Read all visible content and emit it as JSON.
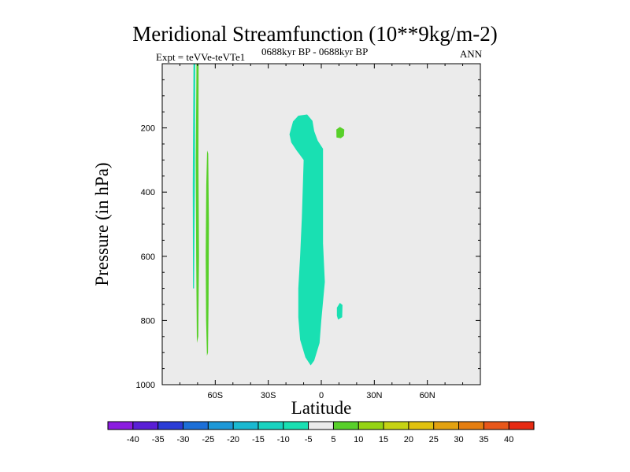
{
  "title": "Meridional Streamfunction (10**9kg/m-2)",
  "subtitle_left": "Expt = teVVe-teVTe1",
  "subtitle_center": "0688kyr BP - 0688kyr BP",
  "subtitle_right": "ANN",
  "chart_data": {
    "type": "contour",
    "title": "Meridional Streamfunction (10**9kg/m-2)",
    "xlabel": "Latitude",
    "ylabel": "Pressure (in hPa)",
    "xlim": [
      -90,
      90
    ],
    "ylim": [
      0,
      1000
    ],
    "y_inverted": true,
    "x_ticks": [
      -60,
      -30,
      0,
      30,
      60
    ],
    "x_tick_labels": [
      "60S",
      "30S",
      "0",
      "30N",
      "60N"
    ],
    "y_ticks": [
      200,
      400,
      600,
      800,
      1000
    ],
    "y_tick_labels": [
      "200",
      "400",
      "600",
      "800",
      "1000"
    ],
    "background_level": "-5 to 5",
    "colorbar": {
      "levels": [
        -40,
        -35,
        -30,
        -25,
        -20,
        -15,
        -10,
        -5,
        5,
        10,
        15,
        20,
        25,
        30,
        35,
        40
      ],
      "labels": [
        "-40",
        "-35",
        "-30",
        "-25",
        "-20",
        "-15",
        "-10",
        "-5",
        "5",
        "10",
        "15",
        "20",
        "25",
        "30",
        "35",
        "40"
      ],
      "colors": [
        "#8b1ce0",
        "#5a1fd6",
        "#2b3cd6",
        "#1c6fd8",
        "#1d98d8",
        "#1ab9d1",
        "#18d3c0",
        "#19e0b2",
        "#ebebeb",
        "#58d02a",
        "#95d413",
        "#c6d313",
        "#e1c20f",
        "#e3a210",
        "#e57e10",
        "#e8571a",
        "#e62a12"
      ]
    },
    "regions": [
      {
        "name": "equatorial-negative-cell",
        "color": "#19e0b2",
        "level": "-10 to -5",
        "polygon": [
          [
            -18,
            220
          ],
          [
            -16,
            180
          ],
          [
            -13,
            162
          ],
          [
            -8,
            158
          ],
          [
            -5,
            178
          ],
          [
            -4,
            210
          ],
          [
            -2,
            240
          ],
          [
            1,
            265
          ],
          [
            1,
            560
          ],
          [
            2,
            680
          ],
          [
            0,
            800
          ],
          [
            -1,
            870
          ],
          [
            -4,
            925
          ],
          [
            -6,
            940
          ],
          [
            -9,
            915
          ],
          [
            -12,
            860
          ],
          [
            -13,
            790
          ],
          [
            -13,
            700
          ],
          [
            -12,
            600
          ],
          [
            -11,
            480
          ],
          [
            -10,
            300
          ],
          [
            -12,
            285
          ],
          [
            -14,
            270
          ],
          [
            -17,
            245
          ]
        ]
      },
      {
        "name": "southern-negative-strip",
        "color": "#19e0b2",
        "level": "-10 to -5",
        "polygon": [
          [
            -72.3,
            0
          ],
          [
            -71.3,
            0
          ],
          [
            -71.5,
            380
          ],
          [
            -72,
            700
          ],
          [
            -72.6,
            700
          ],
          [
            -72.7,
            380
          ]
        ]
      },
      {
        "name": "southern-positive-strip-a",
        "color": "#58d02a",
        "level": "5 to 10",
        "polygon": [
          [
            -70.6,
            0
          ],
          [
            -69.4,
            0
          ],
          [
            -69.5,
            300
          ],
          [
            -69.2,
            600
          ],
          [
            -69.6,
            850
          ],
          [
            -70.4,
            870
          ],
          [
            -70.8,
            600
          ],
          [
            -71,
            300
          ]
        ]
      },
      {
        "name": "southern-positive-strip-b",
        "color": "#58d02a",
        "level": "5 to 10",
        "polygon": [
          [
            -64.6,
            270
          ],
          [
            -64,
            280
          ],
          [
            -63.6,
            500
          ],
          [
            -63.8,
            750
          ],
          [
            -64.1,
            900
          ],
          [
            -64.7,
            910
          ],
          [
            -65.2,
            800
          ],
          [
            -65.4,
            600
          ],
          [
            -65.1,
            380
          ]
        ]
      },
      {
        "name": "northern-positive-blob",
        "color": "#58d02a",
        "level": "5 to 10",
        "polygon": [
          [
            8.5,
            205
          ],
          [
            10.5,
            197
          ],
          [
            13,
            205
          ],
          [
            12.8,
            225
          ],
          [
            11,
            232
          ],
          [
            8.6,
            230
          ]
        ]
      },
      {
        "name": "northern-negative-blob",
        "color": "#19e0b2",
        "level": "-10 to -5",
        "polygon": [
          [
            8.8,
            760
          ],
          [
            10.5,
            745
          ],
          [
            12,
            752
          ],
          [
            11.8,
            790
          ],
          [
            9.5,
            797
          ],
          [
            8.8,
            785
          ]
        ]
      }
    ]
  }
}
